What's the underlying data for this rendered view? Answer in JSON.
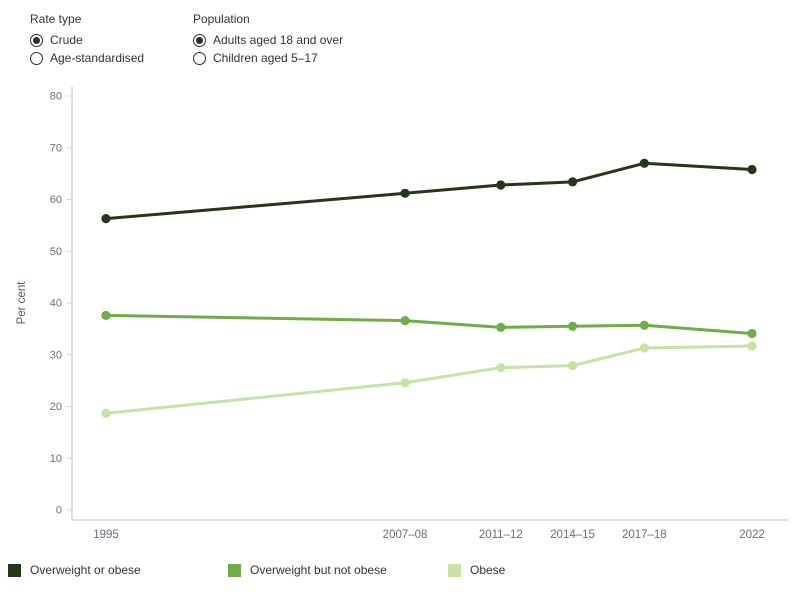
{
  "controls": {
    "rate_type": {
      "label": "Rate type",
      "options": [
        {
          "label": "Crude",
          "selected": true
        },
        {
          "label": "Age-standardised",
          "selected": false
        }
      ]
    },
    "population": {
      "label": "Population",
      "options": [
        {
          "label": "Adults aged 18 and over",
          "selected": true
        },
        {
          "label": "Children aged 5–17",
          "selected": false
        }
      ]
    }
  },
  "colors": {
    "dark_green": "#263719",
    "mid_green": "#6ead48",
    "light_green": "#c5e3a3",
    "axis_line": "#c9c9c9",
    "tick_mark": "#d8d8d8",
    "tick_text": "#68707c",
    "axis_title_text": "#535960",
    "control_text": "#333333"
  },
  "chart_data": {
    "type": "line",
    "title": "",
    "ylabel": "Per cent",
    "xlabel": "",
    "ylim": [
      0,
      80
    ],
    "ytick_step": 10,
    "grid": false,
    "legend_position": "bottom",
    "categories": [
      "1995",
      "2007–08",
      "2011–12",
      "2014–15",
      "2017–18",
      "2022"
    ],
    "x_years": [
      1995,
      2007.5,
      2011.5,
      2014.5,
      2017.5,
      2022
    ],
    "series": [
      {
        "name": "Overweight or obese",
        "color_key": "dark_green",
        "values": [
          56.3,
          61.2,
          62.8,
          63.4,
          67.0,
          65.8
        ]
      },
      {
        "name": "Overweight but not obese",
        "color_key": "mid_green",
        "values": [
          37.6,
          36.6,
          35.3,
          35.5,
          35.7,
          34.1
        ]
      },
      {
        "name": "Obese",
        "color_key": "light_green",
        "values": [
          18.7,
          24.6,
          27.5,
          27.9,
          31.3,
          31.7
        ]
      }
    ]
  }
}
